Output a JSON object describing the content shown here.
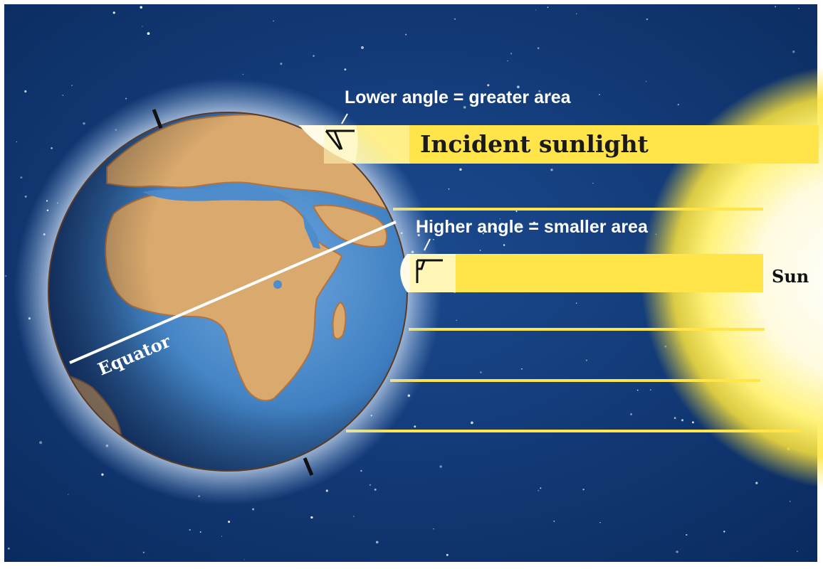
{
  "labels": {
    "lower_angle": "Lower angle = greater area",
    "incident_sunlight": "Incident sunlight",
    "higher_angle": "Higher angle = smaller area",
    "sun": "Sun",
    "equator": "Equator"
  },
  "colors": {
    "space": "#0e3470",
    "sunlight": "#ffe44a",
    "sun_core": "#fffbe6",
    "land": "#d9a96d",
    "ocean": "#3f7fc1",
    "label_text": "#ffffff",
    "sunlight_label_text": "#1a1a1a"
  }
}
